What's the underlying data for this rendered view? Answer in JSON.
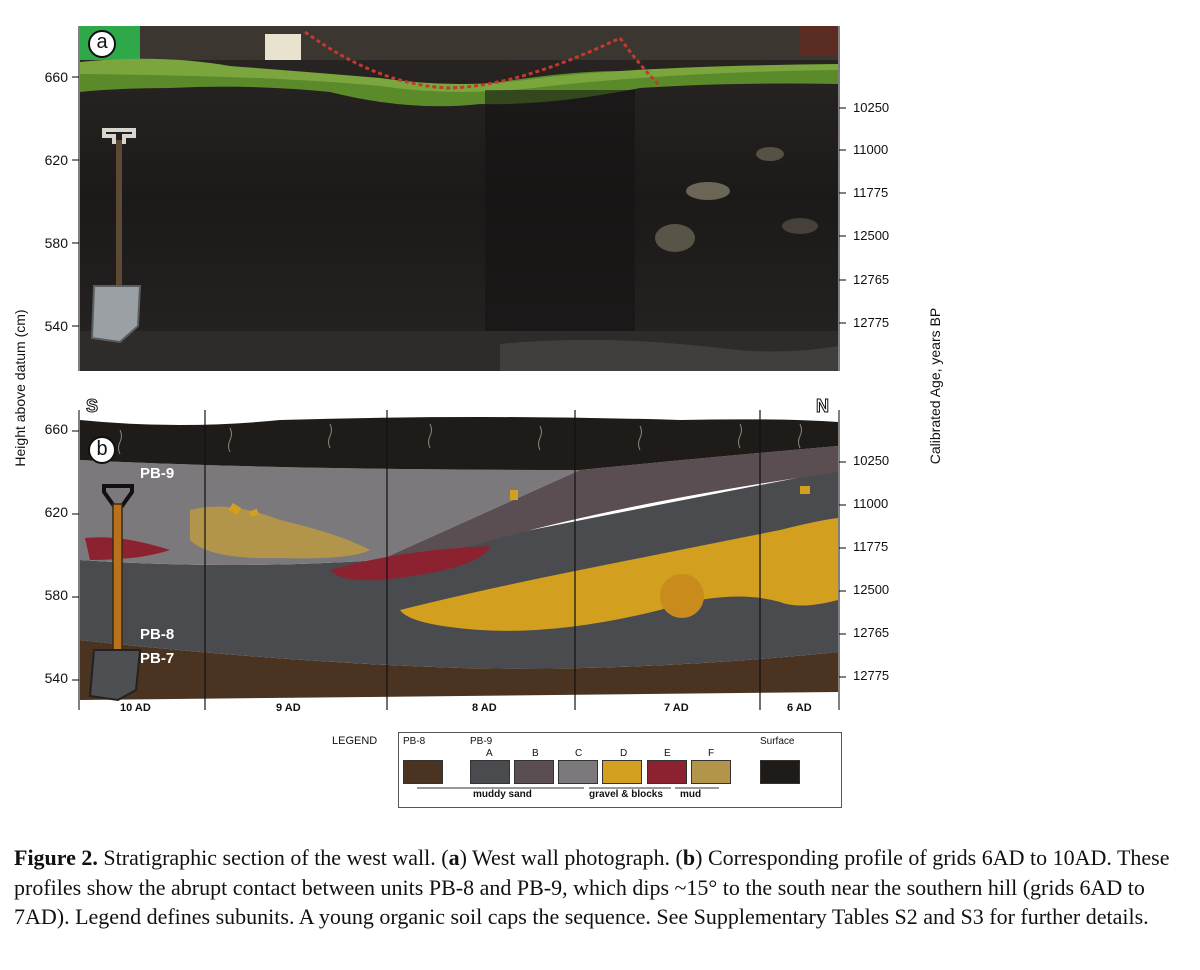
{
  "figure": {
    "panel_a_label": "a",
    "panel_b_label": "b",
    "y_axis_left_label": "Height above datum (cm)",
    "y_axis_right_label": "Calibrated Age, years BP",
    "left_ticks_a": [
      "660",
      "620",
      "580",
      "540"
    ],
    "right_ticks_a": [
      "10250",
      "11000",
      "11775",
      "12500",
      "12765",
      "12775"
    ],
    "left_ticks_b": [
      "660",
      "620",
      "580",
      "540"
    ],
    "right_ticks_b": [
      "10250",
      "11000",
      "11775",
      "12500",
      "12765",
      "12775"
    ],
    "compass_south": "S",
    "compass_north": "N",
    "units": {
      "pb9": "PB-9",
      "pb8": "PB-8",
      "pb7": "PB-7"
    },
    "grids": [
      "10 AD",
      "9 AD",
      "8 AD",
      "7 AD",
      "6 AD"
    ],
    "colors": {
      "pb8": "#4a3320",
      "pb9_a": "#4a4b4f",
      "pb9_b": "#5a4e52",
      "pb9_c": "#7b797c",
      "pb9_d": "#d2a01e",
      "pb9_e": "#8c2230",
      "pb9_f": "#b2954a",
      "surface": "#1e1b19"
    }
  },
  "legend": {
    "title": "LEGEND",
    "pb8_header": "PB-8",
    "pb9_header": "PB-9",
    "surface_header": "Surface",
    "subunits": [
      "A",
      "B",
      "C",
      "D",
      "E",
      "F"
    ],
    "groups": {
      "muddy_sand": "muddy sand",
      "gravel": "gravel & blocks",
      "mud": "mud"
    }
  },
  "caption": {
    "label": "Figure 2.",
    "text_1": " Stratigraphic section of the west wall. (",
    "a": "a",
    "text_2": ") West wall photograph. (",
    "b": "b",
    "text_3": ") Corresponding profile of grids 6AD to 10AD. These profiles show the abrupt contact between units PB-8 and PB-9, which dips ~15° to the south near the southern hill (grids 6AD to 7AD). Legend defines subunits. A young organic soil caps the sequence. See Supplementary Tables S2 and S3 for further details."
  }
}
